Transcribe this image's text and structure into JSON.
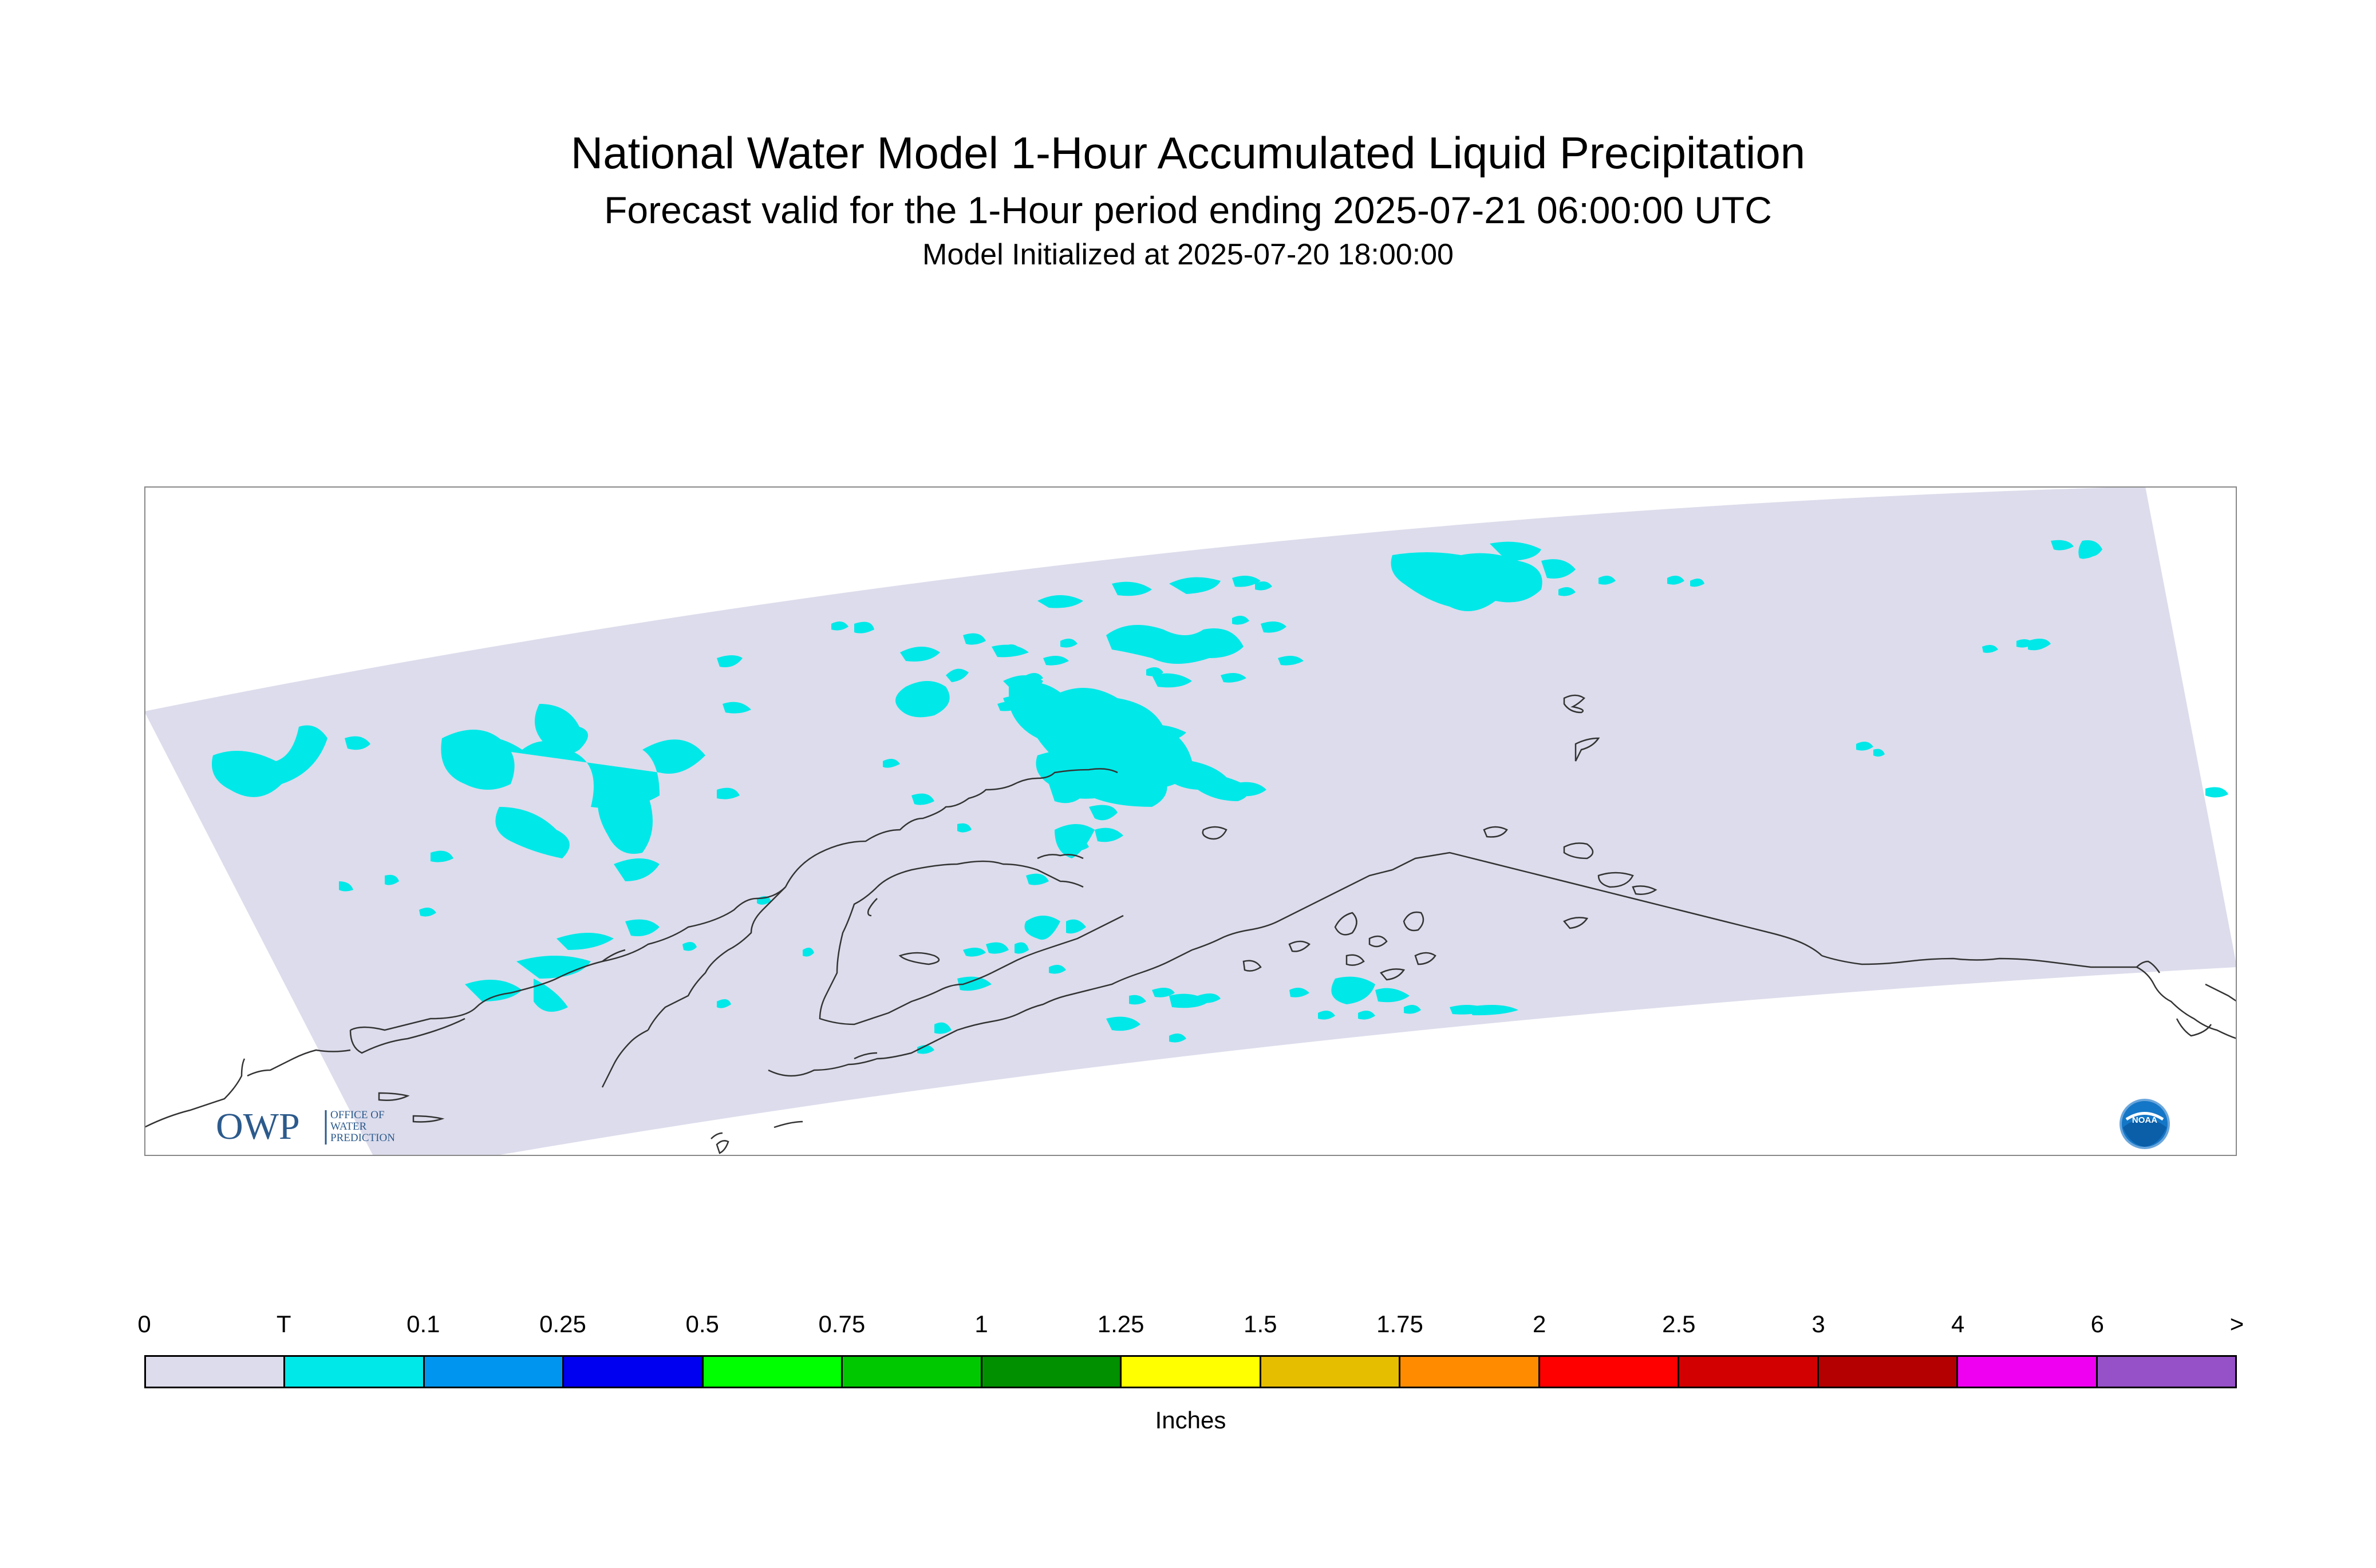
{
  "title": "National Water Model 1-Hour Accumulated Liquid Precipitation",
  "subtitle": "Forecast valid for the 1-Hour period ending 2025-07-21 06:00:00 UTC",
  "init_line": "Model Initialized at 2025-07-20 18:00:00",
  "map": {
    "domain_fill": "#DCDCEC",
    "precip_color": "#00E8E8",
    "coastline_color": "#333333",
    "logos": {
      "owp": {
        "mark": "OWP",
        "text_lines": [
          "OFFICE OF",
          "WATER",
          "PREDICTION"
        ],
        "color": "#2C5A8C"
      },
      "noaa": {
        "text": "NOAA",
        "color": "#1476C6"
      }
    }
  },
  "legend": {
    "units": "Inches",
    "tick_labels": [
      "0",
      "T",
      "0.1",
      "0.25",
      "0.5",
      "0.75",
      "1",
      "1.25",
      "1.5",
      "1.75",
      "2",
      "2.5",
      "3",
      "4",
      "6",
      ">"
    ],
    "colors": [
      "#DCDCEC",
      "#00E8E8",
      "#0096F0",
      "#0000F0",
      "#00FF00",
      "#00C800",
      "#009000",
      "#FFFF00",
      "#E6BE00",
      "#FF8C00",
      "#FF0000",
      "#D20000",
      "#B40000",
      "#F000F0",
      "#9650C8"
    ]
  }
}
